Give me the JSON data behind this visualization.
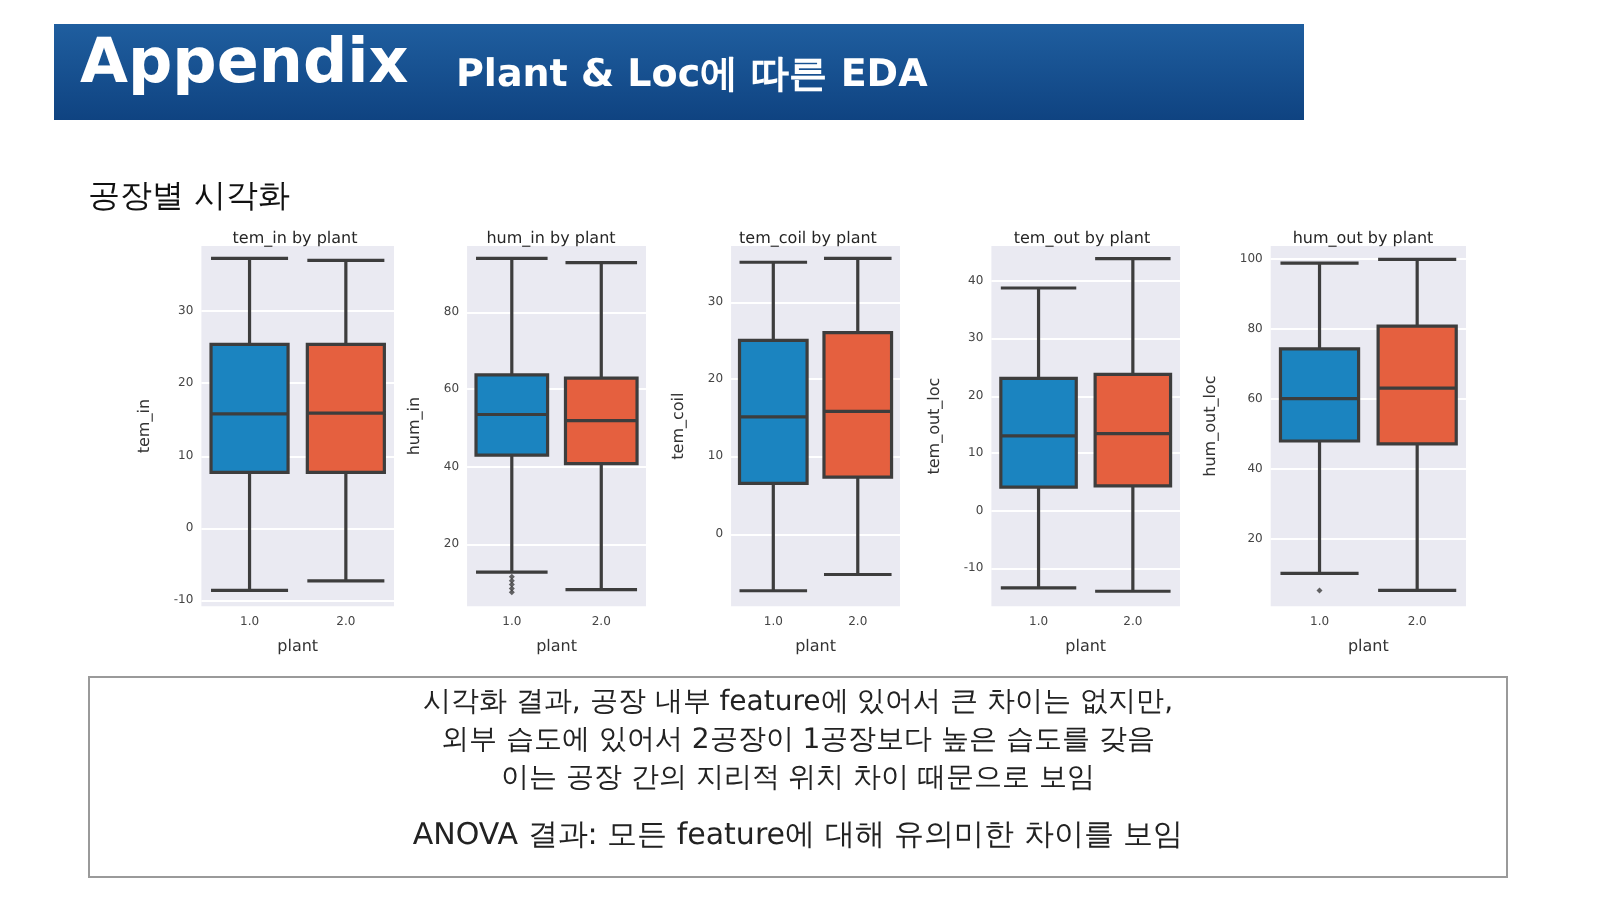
{
  "chart_data": [
    {
      "type": "other",
      "title": "Appendix",
      "subtitle": "Plant & Loc에 따른 EDA",
      "annotations": [
        "공장별 시각화"
      ]
    },
    {
      "type": "box",
      "title": "tem_in by plant",
      "xlabel": "plant",
      "ylabel": "tem_in",
      "categories": [
        "1.0",
        "2.0"
      ],
      "colors": [
        "#1b84c0",
        "#e5603f"
      ],
      "boxes": [
        {
          "low": -8.6,
          "q1": 7.7,
          "median": 15.8,
          "q3": 25.4,
          "high": 37.3
        },
        {
          "low": -7.3,
          "q1": 7.7,
          "median": 15.9,
          "q3": 25.4,
          "high": 37.0
        }
      ],
      "ylim": [
        -10.8,
        39
      ],
      "yticks": [
        -10,
        0,
        10,
        20,
        30
      ],
      "grid": "y"
    },
    {
      "type": "box",
      "title": "hum_in by plant",
      "xlabel": "plant",
      "ylabel": "hum_in",
      "categories": [
        "1.0",
        "2.0"
      ],
      "colors": [
        "#1b84c0",
        "#e5603f"
      ],
      "boxes": [
        {
          "low": 12.8,
          "q1": 43,
          "median": 53.5,
          "q3": 63.7,
          "high": 93.8,
          "outliers": [
            11.6,
            10.6,
            9.6,
            8.6,
            7.6
          ]
        },
        {
          "low": 8.3,
          "q1": 40.8,
          "median": 51.9,
          "q3": 62.9,
          "high": 92.7
        }
      ],
      "ylim": [
        4,
        97
      ],
      "yticks": [
        20,
        40,
        60,
        80
      ],
      "grid": "y"
    },
    {
      "type": "box",
      "title": "tem_coil by plant",
      "xlabel": "plant",
      "ylabel": "tem_coil",
      "categories": [
        "1.0",
        "2.0"
      ],
      "colors": [
        "#1b84c0",
        "#e5603f"
      ],
      "boxes": [
        {
          "low": -7.4,
          "q1": 6.5,
          "median": 15.1,
          "q3": 25.0,
          "high": 35.1
        },
        {
          "low": -5.3,
          "q1": 7.3,
          "median": 15.8,
          "q3": 26.0,
          "high": 35.6
        }
      ],
      "ylim": [
        -9.4,
        37.2
      ],
      "yticks": [
        0,
        10,
        20,
        30
      ],
      "grid": "y"
    },
    {
      "type": "box",
      "title": "tem_out by plant",
      "xlabel": "plant",
      "ylabel": "tem_out_loc",
      "categories": [
        "1.0",
        "2.0"
      ],
      "colors": [
        "#1b84c0",
        "#e5603f"
      ],
      "boxes": [
        {
          "low": -13.4,
          "q1": 4.1,
          "median": 13.0,
          "q3": 23.0,
          "high": 38.7
        },
        {
          "low": -14.0,
          "q1": 4.3,
          "median": 13.4,
          "q3": 23.7,
          "high": 43.8
        }
      ],
      "ylim": [
        -16.6,
        46
      ],
      "yticks": [
        -10,
        0,
        10,
        20,
        30,
        40
      ],
      "grid": "y"
    },
    {
      "type": "box",
      "title": "hum_out by plant",
      "xlabel": "plant",
      "ylabel": "hum_out_loc",
      "categories": [
        "1.0",
        "2.0"
      ],
      "colors": [
        "#1b84c0",
        "#e5603f"
      ],
      "boxes": [
        {
          "low": 10.1,
          "q1": 47.9,
          "median": 60,
          "q3": 74.2,
          "high": 98.7,
          "outliers": [
            5.2
          ]
        },
        {
          "low": 5.2,
          "q1": 47.1,
          "median": 63,
          "q3": 80.7,
          "high": 99.8
        }
      ],
      "ylim": [
        0.7,
        103.6
      ],
      "yticks": [
        20,
        40,
        60,
        80,
        100
      ],
      "grid": "y"
    },
    {
      "type": "other",
      "annotations": [
        "시각화 결과, 공장 내부 feature에 있어서 큰 차이는 없지만,",
        "외부 습도에 있어서 2공장이 1공장보다 높은 습도를 갖음",
        "이는 공장 간의 지리적 위치 차이 때문으로 보임",
        "ANOVA 결과: 모든 feature에 대해 유의미한 차이를 보임"
      ]
    }
  ]
}
